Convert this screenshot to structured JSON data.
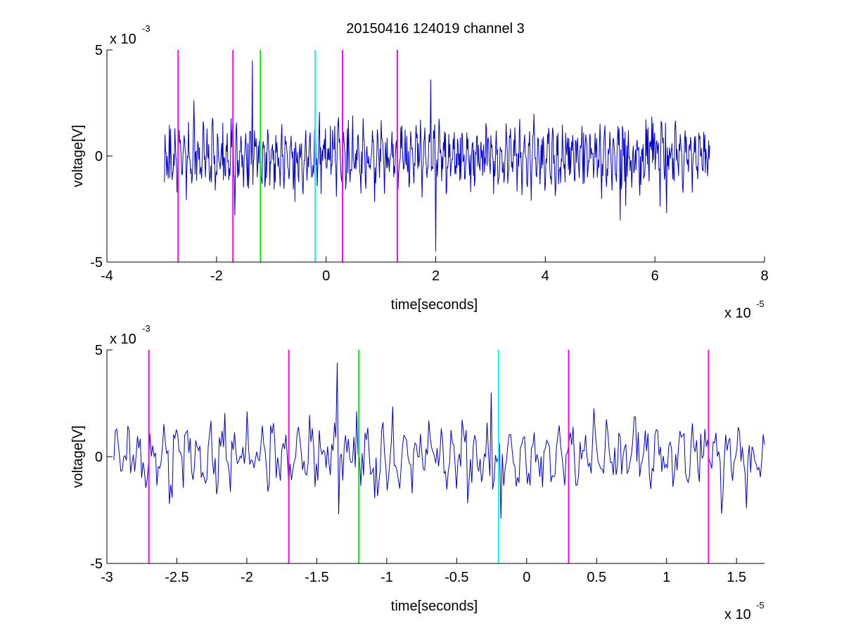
{
  "figure": {
    "title": "20150416 124019 channel 3"
  },
  "colors": {
    "background": "#ffffff",
    "trace": "#0000cc",
    "axes": "#000000",
    "magenta": "#ff00ff",
    "green": "#00ff00",
    "cyan": "#00ffff"
  },
  "chart_data": [
    {
      "type": "line",
      "title": "20150416 124019 channel 3",
      "xlabel": "time[seconds]",
      "ylabel": "voltage[V]",
      "x_exponent": {
        "base": "x 10",
        "power": "-5"
      },
      "y_exponent": {
        "base": "x 10",
        "power": "-3"
      },
      "xlim": [
        -4e-05,
        8e-05
      ],
      "ylim": [
        -0.005,
        0.005
      ],
      "x_ticks": [
        -4e-05,
        -2e-05,
        0,
        2e-05,
        4e-05,
        6e-05,
        8e-05
      ],
      "x_tick_labels": [
        "-4",
        "-2",
        "0",
        "2",
        "4",
        "6",
        "8"
      ],
      "y_ticks": [
        -0.005,
        0,
        0.005
      ],
      "y_tick_labels": [
        "-5",
        "0",
        "5"
      ],
      "grid": false,
      "series": [
        {
          "color": "#0000cc",
          "x_start": -2.95e-05,
          "x_end": 7e-05,
          "points_approx": 1000,
          "envelope_amplitude_v": 0.0015,
          "peaks": [
            {
              "x": -1.35e-05,
              "y": 0.0045
            },
            {
              "x": 1.9e-05,
              "y": 0.0036
            },
            {
              "x": 2e-05,
              "y": -0.0045
            },
            {
              "x": 6.2e-05,
              "y": -0.0027
            }
          ]
        }
      ],
      "markers": [
        {
          "x": -2.7e-05,
          "color": "#ff00ff"
        },
        {
          "x": -1.7e-05,
          "color": "#ff00ff"
        },
        {
          "x": -1.2e-05,
          "color": "#00ff00"
        },
        {
          "x": -2e-06,
          "color": "#00ffff"
        },
        {
          "x": 3e-06,
          "color": "#ff00ff"
        },
        {
          "x": 1.3e-05,
          "color": "#ff00ff"
        }
      ]
    },
    {
      "type": "line",
      "title": "",
      "xlabel": "time[seconds]",
      "ylabel": "voltage[V]",
      "x_exponent": {
        "base": "x 10",
        "power": "-5"
      },
      "y_exponent": {
        "base": "x 10",
        "power": "-3"
      },
      "xlim": [
        -3e-05,
        1.7e-05
      ],
      "ylim": [
        -0.005,
        0.005
      ],
      "x_ticks": [
        -3e-05,
        -2.5e-05,
        -2e-05,
        -1.5e-05,
        -1e-05,
        -5e-06,
        0,
        5e-06,
        1e-05,
        1.5e-05
      ],
      "x_tick_labels": [
        "-3",
        "-2.5",
        "-2",
        "-1.5",
        "-1",
        "-0.5",
        "0",
        "0.5",
        "1",
        "1.5"
      ],
      "y_ticks": [
        -0.005,
        0,
        0.005
      ],
      "y_tick_labels": [
        "-5",
        "0",
        "5"
      ],
      "grid": false,
      "series": [
        {
          "color": "#0000cc",
          "x_start": -2.95e-05,
          "x_end": 1.7e-05,
          "points_approx": 470,
          "envelope_amplitude_v": 0.0015,
          "peaks": [
            {
              "x": -1.35e-05,
              "y": 0.0044
            },
            {
              "x": -1.35e-05,
              "y": -0.0027
            },
            {
              "x": -2.5e-06,
              "y": 0.003
            },
            {
              "x": -1.9e-06,
              "y": -0.0029
            }
          ]
        }
      ],
      "markers": [
        {
          "x": -2.7e-05,
          "color": "#ff00ff"
        },
        {
          "x": -1.7e-05,
          "color": "#ff00ff"
        },
        {
          "x": -1.2e-05,
          "color": "#00ff00"
        },
        {
          "x": -2e-06,
          "color": "#00ffff"
        },
        {
          "x": 3e-06,
          "color": "#ff00ff"
        },
        {
          "x": 1.3e-05,
          "color": "#ff00ff"
        }
      ]
    }
  ]
}
